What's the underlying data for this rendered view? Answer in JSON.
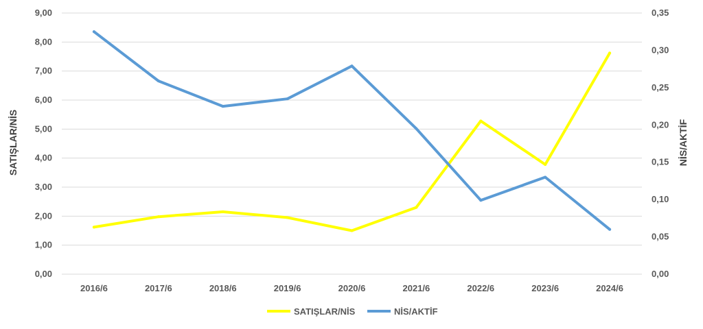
{
  "chart_data": {
    "type": "line",
    "categories": [
      "2016/6",
      "2017/6",
      "2018/6",
      "2019/6",
      "2020/6",
      "2021/6",
      "2022/6",
      "2023/6",
      "2024/6"
    ],
    "series": [
      {
        "name": "SATIŞLAR/NİS",
        "axis": "left",
        "color": "#ffff00",
        "values": [
          1.62,
          1.98,
          2.15,
          1.95,
          1.5,
          2.3,
          5.28,
          3.78,
          7.62
        ]
      },
      {
        "name": "NİS/AKTİF",
        "axis": "right",
        "color": "#5b9bd5",
        "values": [
          0.325,
          0.259,
          0.225,
          0.235,
          0.279,
          0.195,
          0.099,
          0.13,
          0.06
        ]
      }
    ],
    "ylabel": "SATIŞLAR/NİS",
    "y2label": "NİS/AKTİF",
    "ylim": [
      0,
      9
    ],
    "y2lim": [
      0,
      0.35
    ],
    "yticks": [
      "0,00",
      "1,00",
      "2,00",
      "3,00",
      "4,00",
      "5,00",
      "6,00",
      "7,00",
      "8,00",
      "9,00"
    ],
    "y2ticks": [
      "0,00",
      "0,05",
      "0,10",
      "0,15",
      "0,20",
      "0,25",
      "0,30",
      "0,35"
    ],
    "grid": true,
    "legend_position": "bottom"
  }
}
